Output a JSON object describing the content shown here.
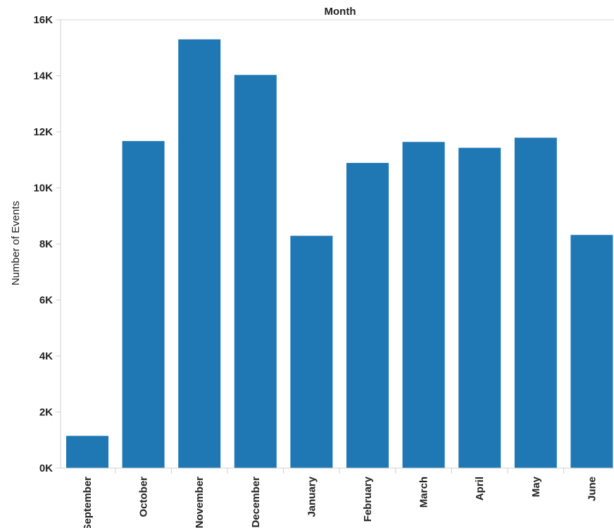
{
  "chart_data": {
    "type": "bar",
    "title": "Month",
    "xlabel": "",
    "ylabel": "Number of Events",
    "categories": [
      "September",
      "October",
      "November",
      "December",
      "January",
      "February",
      "March",
      "April",
      "May",
      "June"
    ],
    "values": [
      1150,
      11670,
      15300,
      14030,
      8290,
      10890,
      11640,
      11430,
      11790,
      8320
    ],
    "ylim": [
      0,
      16000
    ],
    "yticks": [
      0,
      2000,
      4000,
      6000,
      8000,
      10000,
      12000,
      14000,
      16000
    ],
    "ytick_labels": [
      "0K",
      "2K",
      "4K",
      "6K",
      "8K",
      "10K",
      "12K",
      "14K",
      "16K"
    ],
    "grid": false,
    "legend": "none",
    "bar_color": "#1f77b4"
  }
}
